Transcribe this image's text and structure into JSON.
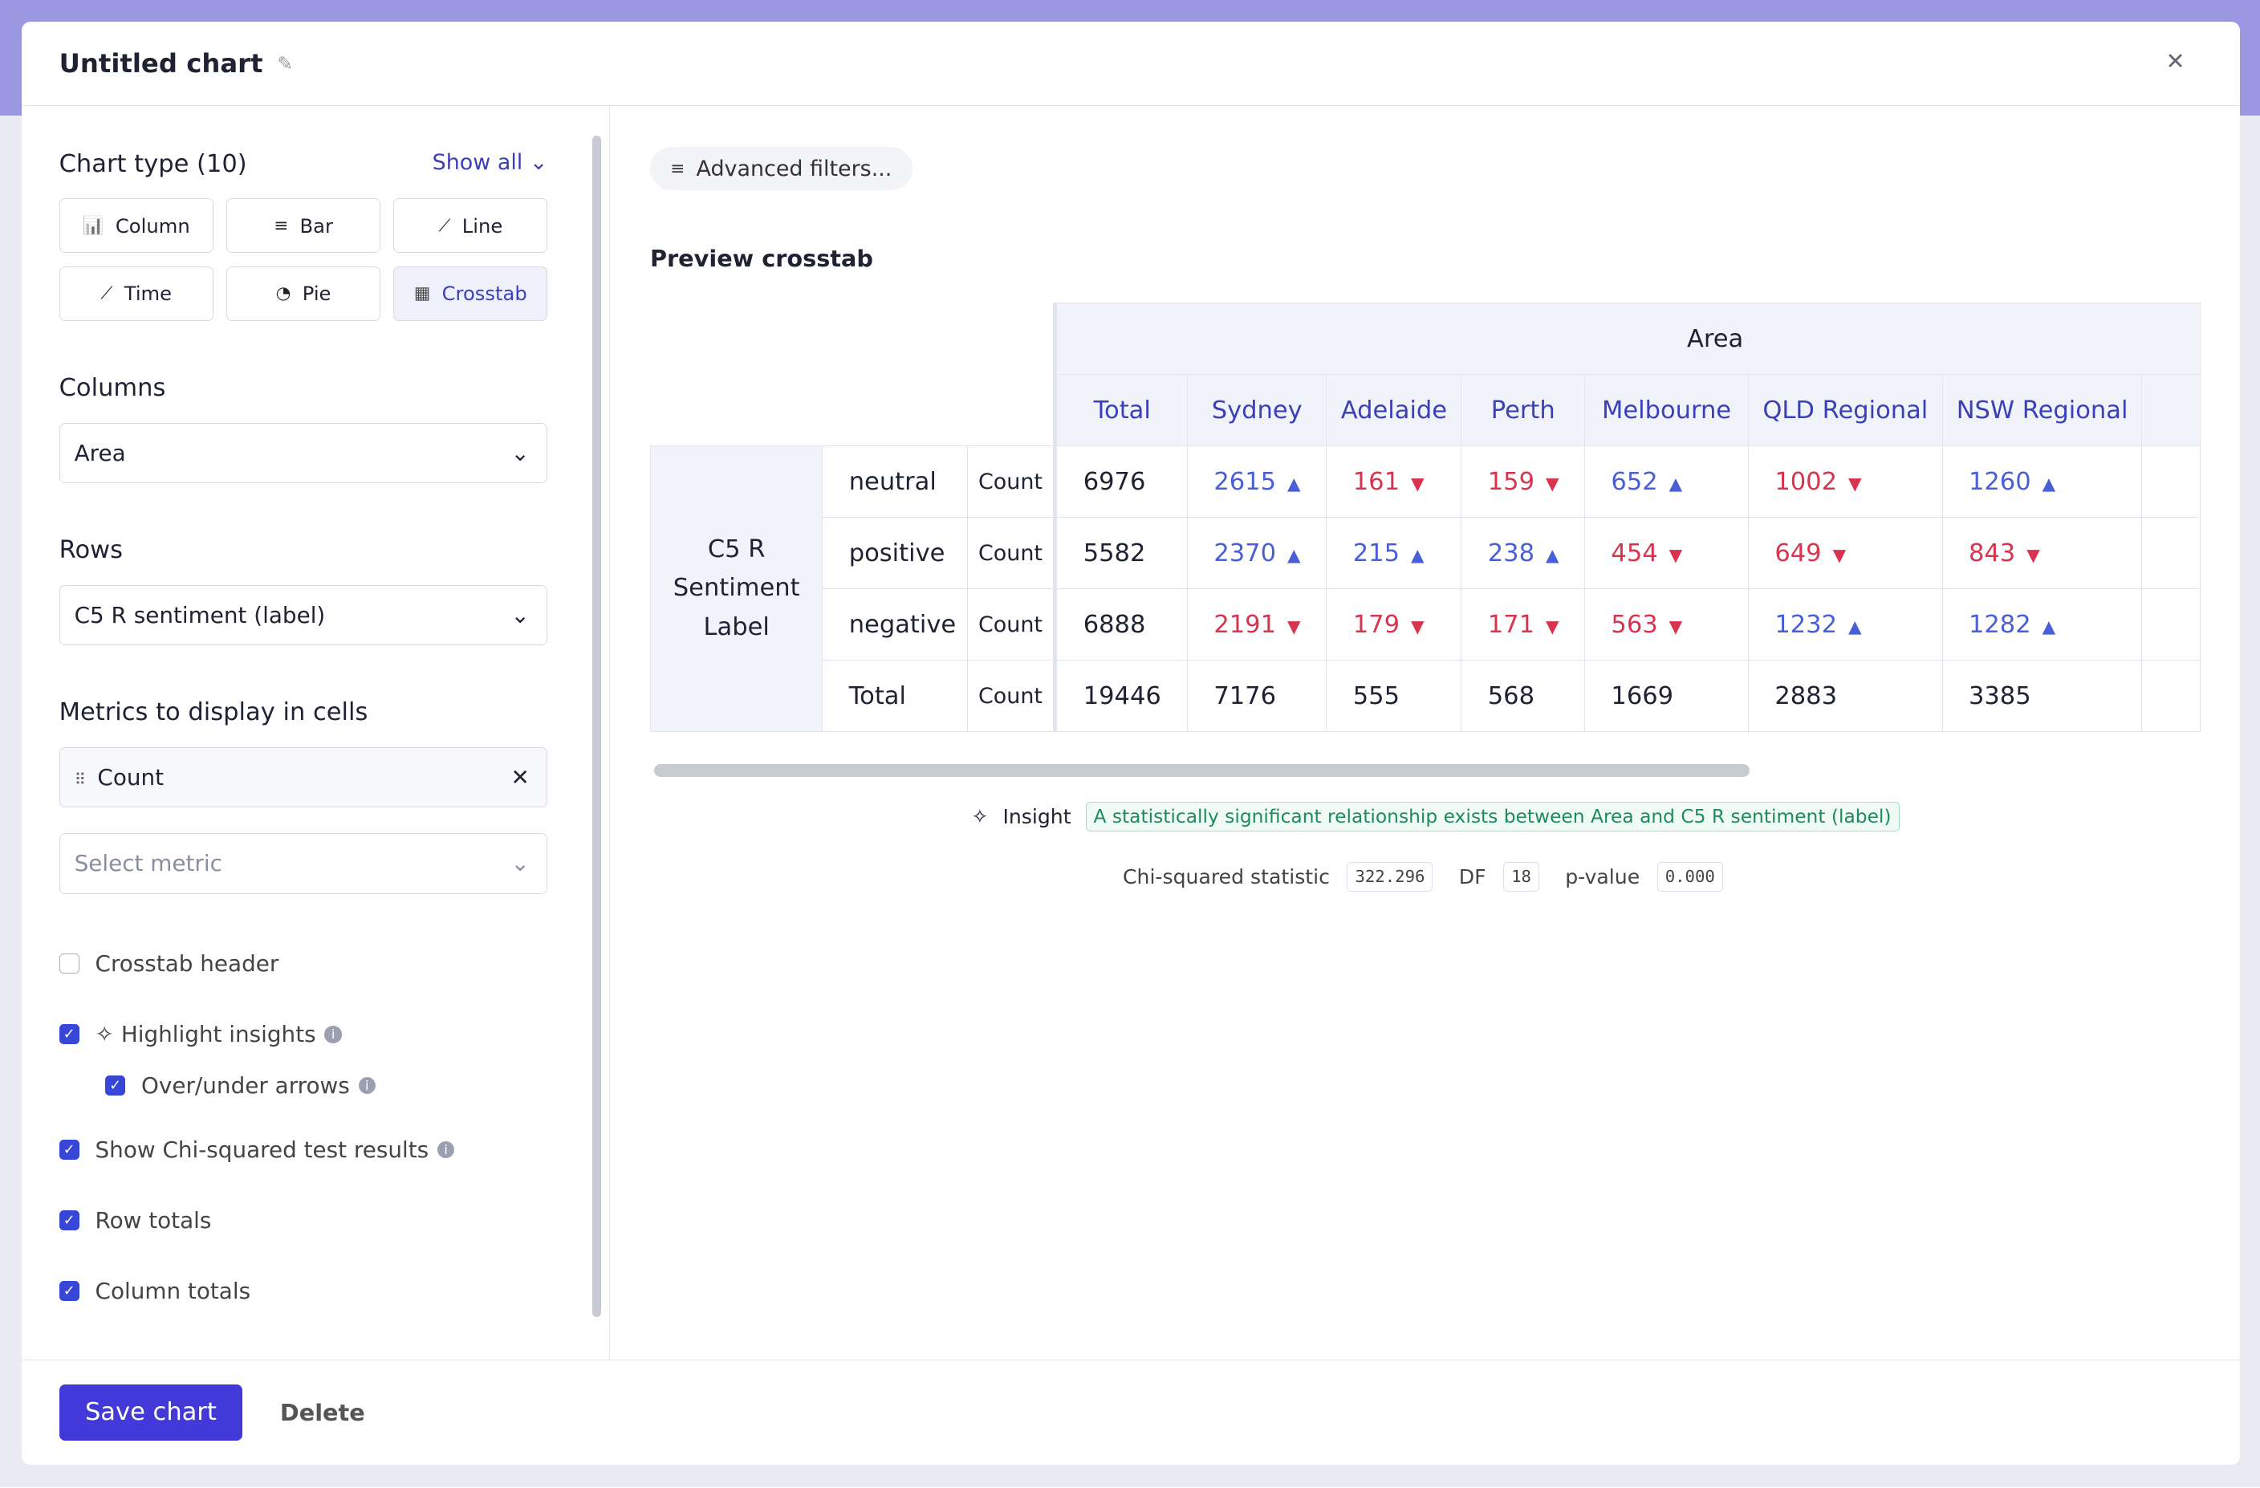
{
  "header": {
    "title": "Untitled chart"
  },
  "sidebar": {
    "chart_type_label": "Chart type (10)",
    "show_all": "Show all",
    "chart_types": [
      {
        "label": "Column",
        "selected": false
      },
      {
        "label": "Bar",
        "selected": false
      },
      {
        "label": "Line",
        "selected": false
      },
      {
        "label": "Time",
        "selected": false
      },
      {
        "label": "Pie",
        "selected": false
      },
      {
        "label": "Crosstab",
        "selected": true
      }
    ],
    "columns_label": "Columns",
    "columns_value": "Area",
    "rows_label": "Rows",
    "rows_value": "C5 R sentiment (label)",
    "metrics_label": "Metrics to display in cells",
    "metric": "Count",
    "metric_placeholder": "Select metric",
    "options": [
      {
        "label": "Crosstab header",
        "checked": false,
        "indent": false,
        "info": false
      },
      {
        "label": "Highlight insights",
        "checked": true,
        "indent": false,
        "info": true
      },
      {
        "label": "Over/under arrows",
        "checked": true,
        "indent": true,
        "info": true
      },
      {
        "label": "Show Chi-squared test results",
        "checked": true,
        "indent": false,
        "info": true
      },
      {
        "label": "Row totals",
        "checked": true,
        "indent": false,
        "info": false
      },
      {
        "label": "Column totals",
        "checked": true,
        "indent": false,
        "info": false
      }
    ]
  },
  "main": {
    "filters": "Advanced filters...",
    "preview_title": "Preview crosstab",
    "table": {
      "column_group": "Area",
      "row_group": "C5 R Sentiment Label",
      "columns": [
        "Total",
        "Sydney",
        "Adelaide",
        "Perth",
        "Melbourne",
        "QLD Regional",
        "NSW Regional"
      ],
      "rows": [
        {
          "label": "neutral",
          "metric": "Count",
          "cells": [
            6976,
            2615,
            161,
            159,
            652,
            1002,
            1260
          ],
          "dirs": [
            null,
            "up",
            "down",
            "down",
            "up",
            "down",
            "up"
          ]
        },
        {
          "label": "positive",
          "metric": "Count",
          "cells": [
            5582,
            2370,
            215,
            238,
            454,
            649,
            843
          ],
          "dirs": [
            null,
            "up",
            "up",
            "up",
            "down",
            "down",
            "down"
          ]
        },
        {
          "label": "negative",
          "metric": "Count",
          "cells": [
            6888,
            2191,
            179,
            171,
            563,
            1232,
            1282
          ],
          "dirs": [
            null,
            "down",
            "down",
            "down",
            "down",
            "up",
            "up"
          ]
        },
        {
          "label": "Total",
          "metric": "Count",
          "cells": [
            19446,
            7176,
            555,
            568,
            1669,
            2883,
            3385
          ],
          "dirs": [
            null,
            null,
            null,
            null,
            null,
            null,
            null
          ]
        }
      ]
    },
    "insight": {
      "label": "Insight",
      "text": "A statistically significant relationship exists between Area and C5 R sentiment (label)"
    },
    "stats": [
      {
        "label": "Chi-squared statistic",
        "value": "322.296"
      },
      {
        "label": "DF",
        "value": "18"
      },
      {
        "label": "p-value",
        "value": "0.000"
      }
    ]
  },
  "footer": {
    "save": "Save chart",
    "delete": "Delete"
  }
}
